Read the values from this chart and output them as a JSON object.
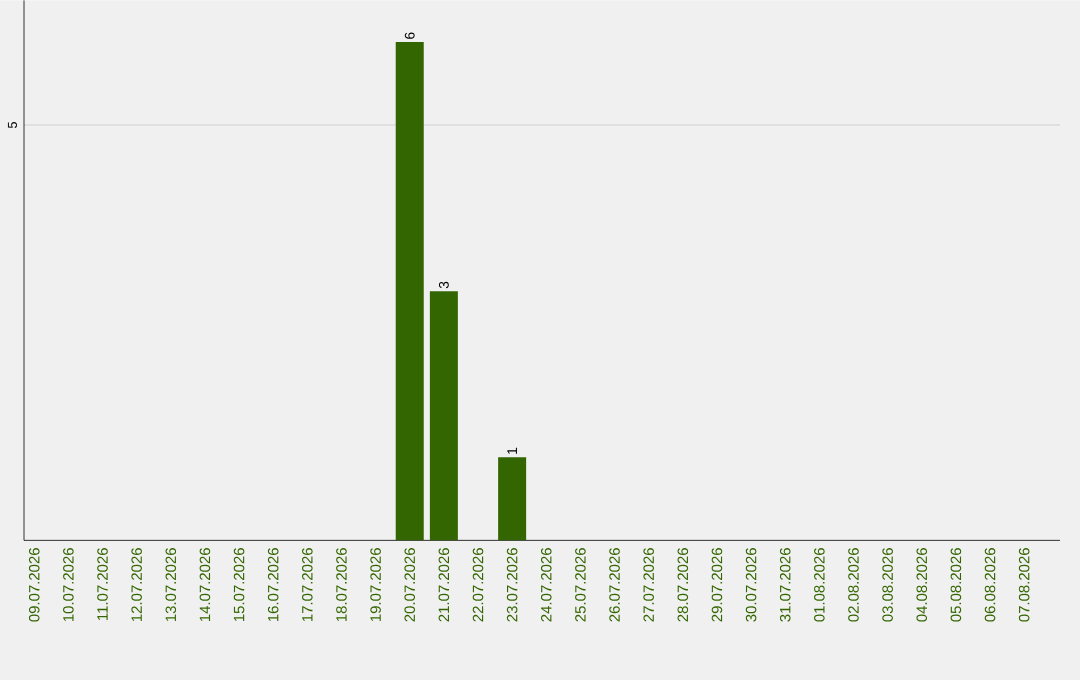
{
  "chart_data": {
    "type": "bar",
    "categories": [
      "09.07.2026",
      "10.07.2026",
      "11.07.2026",
      "12.07.2026",
      "13.07.2026",
      "14.07.2026",
      "15.07.2026",
      "16.07.2026",
      "17.07.2026",
      "18.07.2026",
      "19.07.2026",
      "20.07.2026",
      "21.07.2026",
      "22.07.2026",
      "23.07.2026",
      "24.07.2026",
      "25.07.2026",
      "26.07.2026",
      "27.07.2026",
      "28.07.2026",
      "29.07.2026",
      "30.07.2026",
      "31.07.2026",
      "01.08.2026",
      "02.08.2026",
      "03.08.2026",
      "04.08.2026",
      "05.08.2026",
      "06.08.2026",
      "07.08.2026"
    ],
    "values": [
      0,
      0,
      0,
      0,
      0,
      0,
      0,
      0,
      0,
      0,
      0,
      6,
      3,
      0,
      1,
      0,
      0,
      0,
      0,
      0,
      0,
      0,
      0,
      0,
      0,
      0,
      0,
      0,
      0,
      0
    ],
    "value_labels": [
      null,
      null,
      null,
      null,
      null,
      null,
      null,
      null,
      null,
      null,
      null,
      "6",
      "3",
      null,
      "1",
      null,
      null,
      null,
      null,
      null,
      null,
      null,
      null,
      null,
      null,
      null,
      null,
      null,
      null,
      null
    ],
    "color": "#336600",
    "ylim": [
      0,
      6.5
    ],
    "yticks": [
      5
    ],
    "grid": "y"
  }
}
